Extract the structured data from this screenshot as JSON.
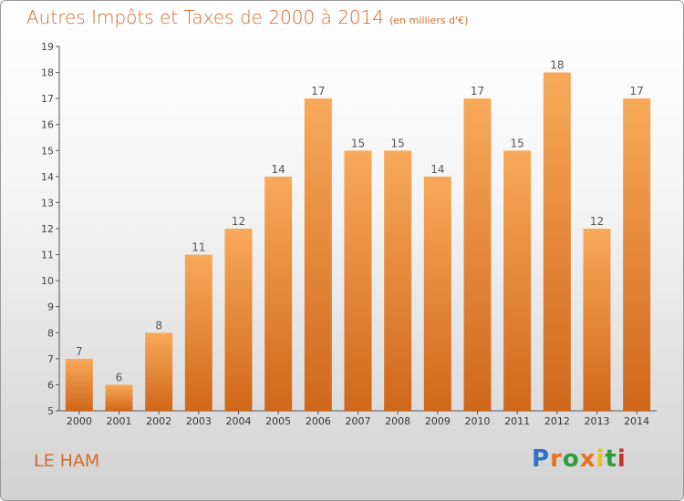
{
  "title": "Autres Impôts et Taxes de 2000 à 2014",
  "title_unit": "(en milliers d'€)",
  "city": "LE HAM",
  "logo_text": "Proxiti",
  "logo_colors": [
    "#2b73c9",
    "#e8711f",
    "#2e9c3a",
    "#e8711f",
    "#e8c21f",
    "#2e9c3a",
    "#c9302c"
  ],
  "colors": {
    "bar_top": "#f8a95a",
    "bar_bottom": "#d0671a",
    "text_accent": "#d6692c"
  },
  "chart_data": {
    "type": "bar",
    "categories": [
      "2000",
      "2001",
      "2002",
      "2003",
      "2004",
      "2005",
      "2006",
      "2007",
      "2008",
      "2009",
      "2010",
      "2011",
      "2012",
      "2013",
      "2014"
    ],
    "values": [
      7,
      6,
      8,
      11,
      12,
      14,
      17,
      15,
      15,
      14,
      17,
      15,
      18,
      12,
      17
    ],
    "ylim": [
      5,
      19
    ],
    "yticks": [
      "5",
      "6",
      "7",
      "8",
      "9",
      "10",
      "11",
      "12",
      "13",
      "14",
      "15",
      "16",
      "17",
      "18",
      "19"
    ],
    "grid": false,
    "data_labels": [
      "7",
      "6",
      "8",
      "11",
      "12",
      "14",
      "17",
      "15",
      "15",
      "14",
      "17",
      "15",
      "18",
      "12",
      "17"
    ]
  }
}
